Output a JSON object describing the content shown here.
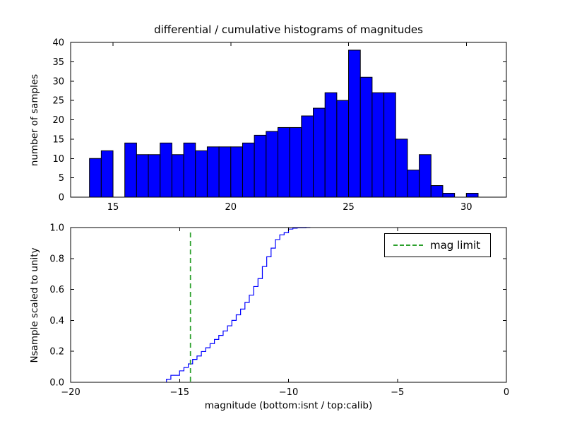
{
  "chart_data": [
    {
      "type": "bar",
      "subtype": "differential-histogram",
      "title": "differential / cumulative histograms of magnitudes",
      "ylabel": "number of samples",
      "bin_start": 14.0,
      "bin_width": 0.5,
      "counts": [
        10,
        12,
        0,
        14,
        11,
        11,
        14,
        11,
        14,
        12,
        13,
        13,
        13,
        14,
        16,
        17,
        18,
        18,
        21,
        23,
        27,
        25,
        38,
        31,
        27,
        27,
        15,
        7,
        11,
        3,
        1,
        0,
        1
      ],
      "xlim": [
        13.2,
        31.7
      ],
      "ylim": [
        0,
        40
      ],
      "xticks": [
        15,
        20,
        25,
        30
      ],
      "xtick_labels": [
        "15",
        "20",
        "25",
        "30"
      ],
      "yticks": [
        0,
        5,
        10,
        15,
        20,
        25,
        30,
        35,
        40
      ],
      "ytick_labels": [
        "0",
        "5",
        "10",
        "15",
        "20",
        "25",
        "30",
        "35",
        "40"
      ],
      "bar_color": "#0000ff",
      "bar_edge_color": "#000000",
      "grid": false
    },
    {
      "type": "line",
      "subtype": "cumulative-step-histogram",
      "ylabel": "Nsample scaled to unity",
      "xlabel": "magnitude (bottom:isnt / top:calib)",
      "step_start": -15.6,
      "step_width": 0.2,
      "cumulative_fraction": [
        0.02,
        0.045,
        0.045,
        0.074,
        0.096,
        0.119,
        0.148,
        0.17,
        0.199,
        0.223,
        0.25,
        0.277,
        0.303,
        0.332,
        0.365,
        0.4,
        0.436,
        0.473,
        0.516,
        0.563,
        0.619,
        0.67,
        0.748,
        0.811,
        0.867,
        0.922,
        0.953,
        0.967,
        0.99,
        0.996,
        0.998,
        0.998,
        1.0
      ],
      "xlim": [
        -20,
        0
      ],
      "ylim": [
        0,
        1
      ],
      "xticks": [
        -20,
        -15,
        -10,
        -5,
        0
      ],
      "xtick_labels": [
        "−20",
        "−15",
        "−10",
        "−5",
        "0"
      ],
      "yticks": [
        0,
        0.2,
        0.4,
        0.6,
        0.8,
        1.0
      ],
      "ytick_labels": [
        "0.0",
        "0.2",
        "0.4",
        "0.6",
        "0.8",
        "1.0"
      ],
      "line_color": "#0000ff",
      "mag_limit_x": -14.5,
      "legend": {
        "label": "mag limit",
        "line_color": "#2ca02c",
        "line_style": "dashed",
        "position": "upper right"
      },
      "grid": false
    }
  ]
}
